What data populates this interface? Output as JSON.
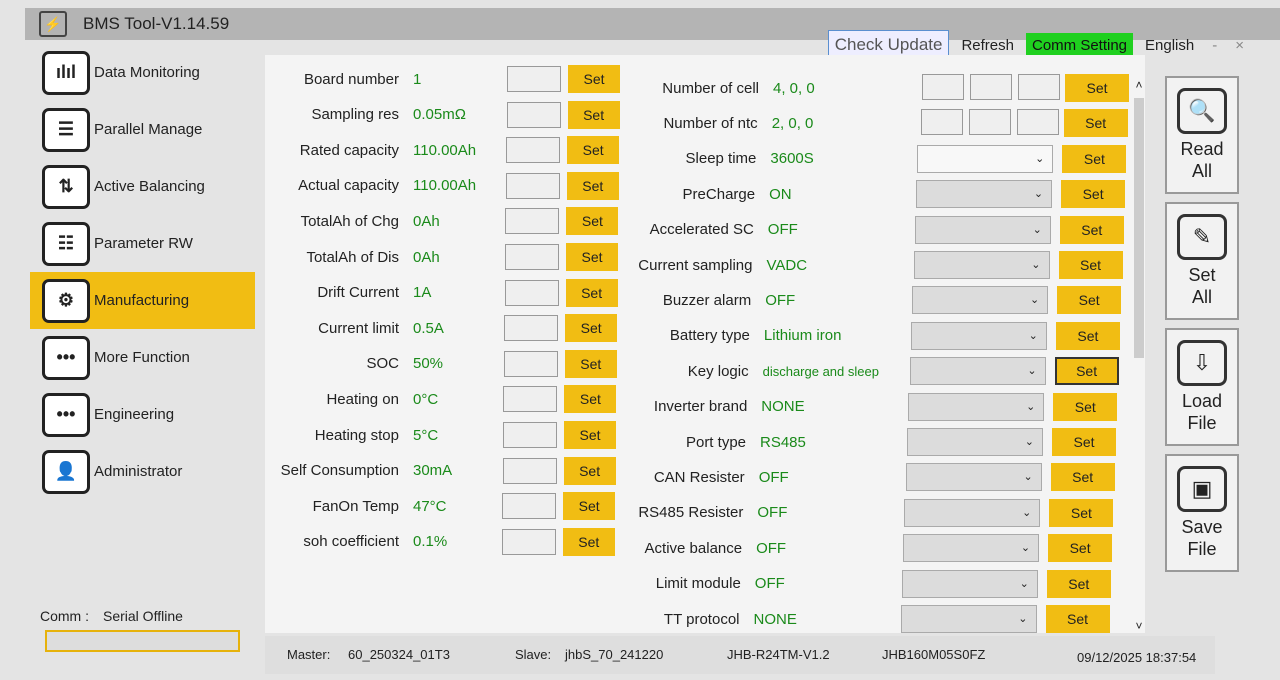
{
  "window": {
    "title": "BMS Tool-V1.14.59"
  },
  "topbar": {
    "check_update": "Check Update",
    "refresh": "Refresh",
    "comm_setting": "Comm Setting",
    "language": "English",
    "minimize": "-",
    "close": "×"
  },
  "sidebar": {
    "items": [
      {
        "label": "Data Monitoring",
        "icon": "bar-chart-icon",
        "glyph": "ılıl"
      },
      {
        "label": "Parallel Manage",
        "icon": "list-icon",
        "glyph": "☰"
      },
      {
        "label": "Active Balancing",
        "icon": "balance-icon",
        "glyph": "⇅"
      },
      {
        "label": "Parameter RW",
        "icon": "sliders-icon",
        "glyph": "☷"
      },
      {
        "label": "Manufacturing",
        "icon": "gears-icon",
        "glyph": "⚙"
      },
      {
        "label": "More Function",
        "icon": "more-icon",
        "glyph": "•••"
      },
      {
        "label": "Engineering",
        "icon": "more-icon",
        "glyph": "•••"
      },
      {
        "label": "Administrator",
        "icon": "user-icon",
        "glyph": "👤"
      }
    ],
    "active": "Manufacturing"
  },
  "comm": {
    "label": "Comm :",
    "status": "Serial Offline"
  },
  "set_label": "Set",
  "left_params": [
    {
      "label": "Board number",
      "value": "1"
    },
    {
      "label": "Sampling res",
      "value": "0.05mΩ"
    },
    {
      "label": "Rated capacity",
      "value": "110.00Ah"
    },
    {
      "label": "Actual capacity",
      "value": "110.00Ah"
    },
    {
      "label": "TotalAh of Chg",
      "value": "0Ah"
    },
    {
      "label": "TotalAh of Dis",
      "value": "0Ah"
    },
    {
      "label": "Drift Current",
      "value": "1A"
    },
    {
      "label": "Current limit",
      "value": "0.5A"
    },
    {
      "label": "SOC",
      "value": "50%"
    },
    {
      "label": "Heating on",
      "value": "0°C"
    },
    {
      "label": "Heating stop",
      "value": "5°C"
    },
    {
      "label": "Self Consumption",
      "value": "30mA"
    },
    {
      "label": "FanOn Temp",
      "value": "47°C"
    },
    {
      "label": "soh coefficient",
      "value": "0.1%"
    }
  ],
  "right_params": [
    {
      "label": "Number of cell",
      "value": "4, 0, 0",
      "input": "triple"
    },
    {
      "label": "Number of ntc",
      "value": "2, 0, 0",
      "input": "triple"
    },
    {
      "label": "Sleep time",
      "value": "3600S",
      "input": "select"
    },
    {
      "label": "PreCharge",
      "value": "ON",
      "input": "select"
    },
    {
      "label": "Accelerated SC",
      "value": "OFF",
      "input": "select"
    },
    {
      "label": "Current sampling",
      "value": "VADC",
      "input": "select"
    },
    {
      "label": "Buzzer alarm",
      "value": "OFF",
      "input": "select"
    },
    {
      "label": "Battery type",
      "value": "Lithium iron",
      "input": "select"
    },
    {
      "label": "Key logic",
      "value": "discharge and sleep",
      "input": "select"
    },
    {
      "label": "Inverter brand",
      "value": "NONE",
      "input": "select"
    },
    {
      "label": "Port type",
      "value": "RS485",
      "input": "select"
    },
    {
      "label": "CAN Resister",
      "value": "OFF",
      "input": "select"
    },
    {
      "label": "RS485 Resister",
      "value": "OFF",
      "input": "select"
    },
    {
      "label": "Active balance",
      "value": "OFF",
      "input": "select"
    },
    {
      "label": "Limit module",
      "value": "OFF",
      "input": "select"
    },
    {
      "label": "TT protocol",
      "value": "NONE",
      "input": "select"
    }
  ],
  "actions": [
    {
      "label": "Read All",
      "icon": "magnifier-icon",
      "glyph": "🔍"
    },
    {
      "label": "Set All",
      "icon": "pencil-icon",
      "glyph": "✎"
    },
    {
      "label": "Load File",
      "icon": "download-icon",
      "glyph": "⇩"
    },
    {
      "label": "Save File",
      "icon": "save-icon",
      "glyph": "▣"
    }
  ],
  "status": {
    "master_label": "Master:",
    "master": "60_250324_01T3",
    "slave_label": "Slave:",
    "slave": "jhbS_70_241220",
    "hw": "JHB-R24TM-V1.2",
    "model": "JHB160M05S0FZ",
    "datetime": "09/12/2025 18:37:54"
  }
}
